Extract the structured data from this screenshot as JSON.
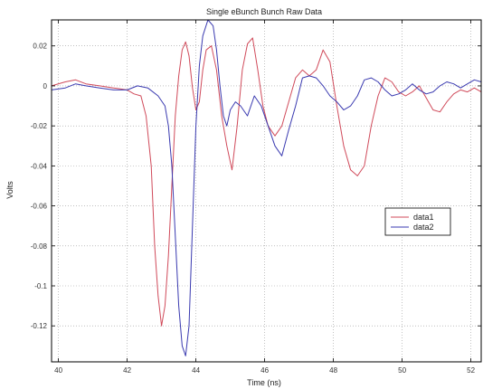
{
  "chart_data": {
    "type": "line",
    "title": "Single eBunch Bunch Raw Data",
    "xlabel": "Time (ns)",
    "ylabel": "Volts",
    "xlim": [
      39.8,
      52.3
    ],
    "ylim": [
      -0.138,
      0.033
    ],
    "grid": true,
    "legend_position": "right-middle",
    "x_ticks": [
      40,
      42,
      44,
      46,
      48,
      50,
      52
    ],
    "x_tick_labels": [
      "40",
      "42",
      "44",
      "46",
      "48",
      "50",
      "52"
    ],
    "y_ticks": [
      0.02,
      0,
      -0.02,
      -0.04,
      -0.06,
      -0.08,
      -0.1,
      -0.12
    ],
    "y_tick_labels": [
      "0.02",
      "0",
      "-0.02",
      "-0.04",
      "-0.06",
      "-0.08",
      "-0.1",
      "-0.12"
    ],
    "series": [
      {
        "name": "data1",
        "color": "#d04a5a",
        "x": [
          39.8,
          40.2,
          40.5,
          40.8,
          41.2,
          41.6,
          42.0,
          42.2,
          42.4,
          42.55,
          42.7,
          42.8,
          42.9,
          43.0,
          43.1,
          43.2,
          43.3,
          43.4,
          43.5,
          43.6,
          43.7,
          43.8,
          43.9,
          44.0,
          44.1,
          44.2,
          44.3,
          44.45,
          44.6,
          44.75,
          44.9,
          45.05,
          45.2,
          45.35,
          45.5,
          45.65,
          45.8,
          45.95,
          46.1,
          46.3,
          46.5,
          46.7,
          46.9,
          47.1,
          47.3,
          47.5,
          47.7,
          47.9,
          48.1,
          48.3,
          48.5,
          48.7,
          48.9,
          49.1,
          49.3,
          49.5,
          49.7,
          49.9,
          50.1,
          50.3,
          50.5,
          50.7,
          50.9,
          51.1,
          51.3,
          51.5,
          51.7,
          51.9,
          52.1,
          52.3
        ],
        "y": [
          0.0,
          0.002,
          0.003,
          0.001,
          0.0,
          -0.001,
          -0.002,
          -0.004,
          -0.005,
          -0.015,
          -0.04,
          -0.08,
          -0.105,
          -0.12,
          -0.11,
          -0.085,
          -0.05,
          -0.015,
          0.005,
          0.018,
          0.022,
          0.015,
          -0.001,
          -0.012,
          -0.008,
          0.008,
          0.018,
          0.02,
          0.008,
          -0.015,
          -0.03,
          -0.042,
          -0.02,
          0.008,
          0.021,
          0.024,
          0.008,
          -0.01,
          -0.02,
          -0.025,
          -0.02,
          -0.008,
          0.004,
          0.008,
          0.005,
          0.008,
          0.018,
          0.012,
          -0.01,
          -0.03,
          -0.042,
          -0.045,
          -0.04,
          -0.02,
          -0.005,
          0.004,
          0.002,
          -0.003,
          -0.005,
          -0.003,
          0.0,
          -0.006,
          -0.012,
          -0.013,
          -0.008,
          -0.004,
          -0.002,
          -0.003,
          -0.001,
          -0.003
        ]
      },
      {
        "name": "data2",
        "color": "#3a3ab0",
        "x": [
          39.8,
          40.2,
          40.5,
          40.8,
          41.2,
          41.6,
          42.0,
          42.3,
          42.6,
          42.9,
          43.1,
          43.2,
          43.3,
          43.4,
          43.5,
          43.6,
          43.7,
          43.8,
          43.9,
          44.0,
          44.1,
          44.2,
          44.35,
          44.5,
          44.6,
          44.7,
          44.8,
          44.9,
          45.0,
          45.15,
          45.3,
          45.5,
          45.7,
          45.9,
          46.1,
          46.3,
          46.5,
          46.7,
          46.9,
          47.1,
          47.3,
          47.5,
          47.7,
          47.9,
          48.1,
          48.3,
          48.5,
          48.7,
          48.9,
          49.1,
          49.3,
          49.5,
          49.7,
          49.9,
          50.1,
          50.3,
          50.5,
          50.7,
          50.9,
          51.1,
          51.3,
          51.5,
          51.7,
          51.9,
          52.1,
          52.3
        ],
        "y": [
          -0.002,
          -0.001,
          0.001,
          0.0,
          -0.001,
          -0.002,
          -0.002,
          0.0,
          -0.001,
          -0.005,
          -0.01,
          -0.02,
          -0.04,
          -0.075,
          -0.11,
          -0.13,
          -0.135,
          -0.12,
          -0.07,
          -0.02,
          0.01,
          0.025,
          0.033,
          0.03,
          0.018,
          0.0,
          -0.015,
          -0.02,
          -0.012,
          -0.008,
          -0.01,
          -0.015,
          -0.005,
          -0.01,
          -0.02,
          -0.03,
          -0.035,
          -0.022,
          -0.01,
          0.004,
          0.005,
          0.004,
          0.0,
          -0.005,
          -0.008,
          -0.012,
          -0.01,
          -0.005,
          0.003,
          0.004,
          0.002,
          -0.002,
          -0.005,
          -0.004,
          -0.002,
          0.001,
          -0.002,
          -0.004,
          -0.003,
          0.0,
          0.002,
          0.001,
          -0.001,
          0.001,
          0.003,
          0.002
        ]
      }
    ]
  }
}
